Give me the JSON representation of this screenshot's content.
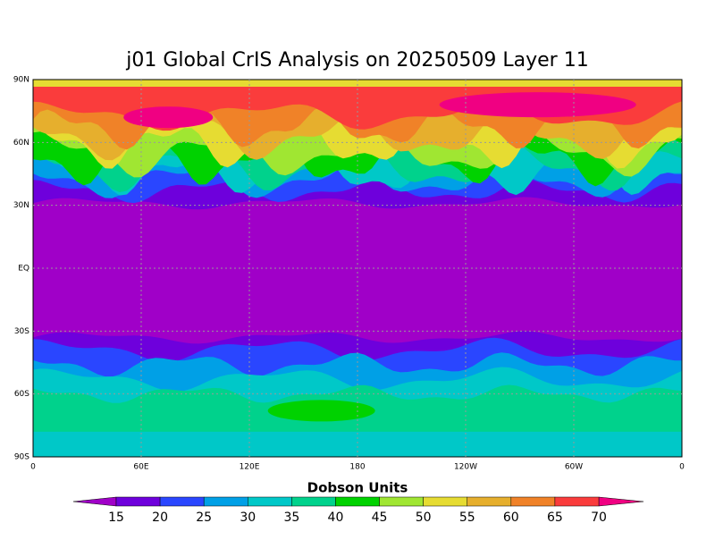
{
  "title": "j01 Global CrIS Analysis on 20250509 Layer 11",
  "map": {
    "lat_labels": [
      "90N",
      "60N",
      "30N",
      "EQ",
      "30S",
      "60S",
      "90S"
    ],
    "lon_labels": [
      "0",
      "60E",
      "120E",
      "180",
      "120W",
      "60W",
      "0"
    ]
  },
  "colorbar": {
    "title": "Dobson Units",
    "levels": [
      15,
      20,
      25,
      30,
      35,
      40,
      45,
      50,
      55,
      60,
      65,
      70
    ],
    "colors": [
      "#a000c8",
      "#6e00dc",
      "#2a46ff",
      "#00a0e6",
      "#00c8c8",
      "#00d28c",
      "#00d200",
      "#a0e632",
      "#e6dc32",
      "#e6af2d",
      "#f08228",
      "#fa3c3c",
      "#f00082"
    ]
  }
}
